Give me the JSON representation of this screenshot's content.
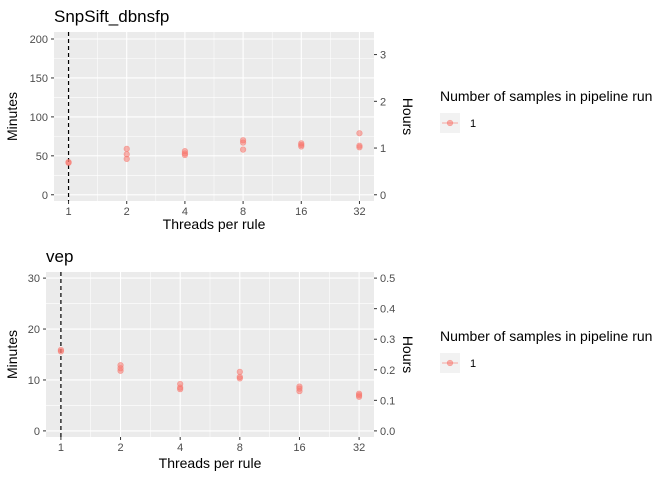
{
  "chart_data": [
    {
      "type": "scatter",
      "title": "SnpSift_dbnsfp",
      "xlabel": "Threads per rule",
      "ylabel": "Minutes",
      "y2label": "Hours",
      "x_scale": "log2",
      "x_ticks": [
        1,
        2,
        4,
        8,
        16,
        32
      ],
      "ylim": [
        -8,
        209
      ],
      "y_ticks": [
        0,
        50,
        100,
        150,
        200
      ],
      "y2_ticks": [
        0,
        1,
        2,
        3
      ],
      "reference_line_x": 1,
      "grid": true,
      "legend_position": "right",
      "series": [
        {
          "name": "1",
          "color": "#F8766D",
          "points": [
            {
              "x": 1,
              "y": 41
            },
            {
              "x": 1,
              "y": 42
            },
            {
              "x": 2,
              "y": 46
            },
            {
              "x": 2,
              "y": 52
            },
            {
              "x": 2,
              "y": 59
            },
            {
              "x": 4,
              "y": 51
            },
            {
              "x": 4,
              "y": 53
            },
            {
              "x": 4,
              "y": 56
            },
            {
              "x": 8,
              "y": 58
            },
            {
              "x": 8,
              "y": 67
            },
            {
              "x": 8,
              "y": 70
            },
            {
              "x": 16,
              "y": 62
            },
            {
              "x": 16,
              "y": 64
            },
            {
              "x": 16,
              "y": 66
            },
            {
              "x": 32,
              "y": 61
            },
            {
              "x": 32,
              "y": 63
            },
            {
              "x": 32,
              "y": 79
            }
          ]
        }
      ]
    },
    {
      "type": "scatter",
      "title": "vep",
      "xlabel": "Threads per rule",
      "ylabel": "Minutes",
      "y2label": "Hours",
      "x_scale": "log2",
      "x_ticks": [
        1,
        2,
        4,
        8,
        16,
        32
      ],
      "ylim": [
        -1.2,
        31.2
      ],
      "y_ticks": [
        0,
        10,
        20,
        30
      ],
      "y2_ticks": [
        0.0,
        0.1,
        0.2,
        0.3,
        0.4,
        0.5
      ],
      "reference_line_x": 1,
      "grid": true,
      "legend_position": "right",
      "series": [
        {
          "name": "1",
          "color": "#F8766D",
          "points": [
            {
              "x": 1,
              "y": 15.6
            },
            {
              "x": 1,
              "y": 15.9
            },
            {
              "x": 2,
              "y": 11.8
            },
            {
              "x": 2,
              "y": 12.3
            },
            {
              "x": 2,
              "y": 12.9
            },
            {
              "x": 4,
              "y": 8.2
            },
            {
              "x": 4,
              "y": 8.5
            },
            {
              "x": 4,
              "y": 9.2
            },
            {
              "x": 8,
              "y": 10.3
            },
            {
              "x": 8,
              "y": 10.6
            },
            {
              "x": 8,
              "y": 11.6
            },
            {
              "x": 16,
              "y": 7.8
            },
            {
              "x": 16,
              "y": 8.3
            },
            {
              "x": 16,
              "y": 8.7
            },
            {
              "x": 32,
              "y": 6.7
            },
            {
              "x": 32,
              "y": 7.0
            },
            {
              "x": 32,
              "y": 7.3
            }
          ]
        }
      ]
    }
  ],
  "legends": [
    {
      "title": "Number of samples in pipeline run",
      "entries": [
        "1"
      ]
    },
    {
      "title": "Number of samples in pipeline run",
      "entries": [
        "1"
      ]
    }
  ]
}
